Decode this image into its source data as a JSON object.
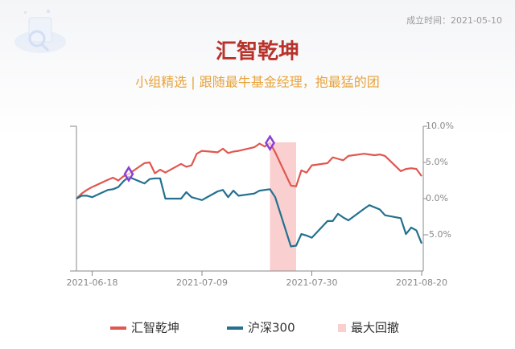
{
  "established": "成立时间：2021-05-10",
  "chart_data": {
    "type": "line",
    "title": "汇智乾坤",
    "subtitle": "小组精选 | 跟随最牛基金经理，抱最猛的团",
    "x": [
      "2021-06-15",
      "2021-06-16",
      "2021-06-17",
      "2021-06-18",
      "2021-06-21",
      "2021-06-22",
      "2021-06-23",
      "2021-06-24",
      "2021-06-25",
      "2021-06-28",
      "2021-06-29",
      "2021-06-30",
      "2021-07-01",
      "2021-07-02",
      "2021-07-05",
      "2021-07-06",
      "2021-07-07",
      "2021-07-08",
      "2021-07-09",
      "2021-07-12",
      "2021-07-13",
      "2021-07-14",
      "2021-07-15",
      "2021-07-16",
      "2021-07-19",
      "2021-07-20",
      "2021-07-21",
      "2021-07-22",
      "2021-07-23",
      "2021-07-26",
      "2021-07-27",
      "2021-07-28",
      "2021-07-29",
      "2021-07-30",
      "2021-08-02",
      "2021-08-03",
      "2021-08-04",
      "2021-08-05",
      "2021-08-06",
      "2021-08-09",
      "2021-08-10",
      "2021-08-11",
      "2021-08-12",
      "2021-08-13",
      "2021-08-16",
      "2021-08-17",
      "2021-08-18",
      "2021-08-19",
      "2021-08-20"
    ],
    "series": [
      {
        "name": "汇智乾坤",
        "color": "#e0574f",
        "values": [
          0,
          0.7,
          1.2,
          1.6,
          2.6,
          2.9,
          2.5,
          3.1,
          3.4,
          4.9,
          5.0,
          3.5,
          4.0,
          3.6,
          4.8,
          4.4,
          4.6,
          6.2,
          6.6,
          6.4,
          6.9,
          6.3,
          6.5,
          6.6,
          7.1,
          7.6,
          7.2,
          7.7,
          6.4,
          1.8,
          1.7,
          3.9,
          3.6,
          4.6,
          4.9,
          5.7,
          5.5,
          5.3,
          5.9,
          6.2,
          6.1,
          6.0,
          6.1,
          5.9,
          3.8,
          4.1,
          4.2,
          4.1,
          3.1
        ]
      },
      {
        "name": "沪深300",
        "color": "#23708f",
        "values": [
          0,
          0.4,
          0.4,
          0.2,
          1.2,
          1.3,
          1.6,
          2.4,
          3.0,
          2.1,
          2.7,
          2.8,
          2.8,
          0.0,
          0.0,
          0.9,
          0.2,
          0.0,
          -0.2,
          1.0,
          1.2,
          0.2,
          1.1,
          0.4,
          0.7,
          1.1,
          1.2,
          1.3,
          0.2,
          -6.6,
          -6.5,
          -4.9,
          -5.1,
          -5.4,
          -3.1,
          -3.1,
          -2.1,
          -2.6,
          -3.0,
          -1.4,
          -0.9,
          -1.2,
          -1.5,
          -2.3,
          -2.7,
          -4.9,
          -4.0,
          -4.4,
          -6.2
        ]
      }
    ],
    "drawdown": {
      "name": "最大回撤",
      "color": "#f9d0cf",
      "start": "2021-07-22",
      "end": "2021-07-27"
    },
    "markers": [
      {
        "x": "2021-06-25",
        "value": 3.4
      },
      {
        "x": "2021-07-22",
        "value": 7.7
      }
    ],
    "marker_color": "#8b3fd6",
    "xlim": [
      "2021-06-15",
      "2021-08-20"
    ],
    "xticks": [
      "2021-06-18",
      "2021-07-09",
      "2021-07-30",
      "2021-08-20"
    ],
    "ylim": [
      -10,
      10
    ],
    "yticks": [
      {
        "value": 10,
        "label": "10.0%"
      },
      {
        "value": 5,
        "label": "5.0%"
      },
      {
        "value": 0,
        "label": "0.0%"
      },
      {
        "value": -5,
        "label": "-5.0%"
      }
    ]
  }
}
